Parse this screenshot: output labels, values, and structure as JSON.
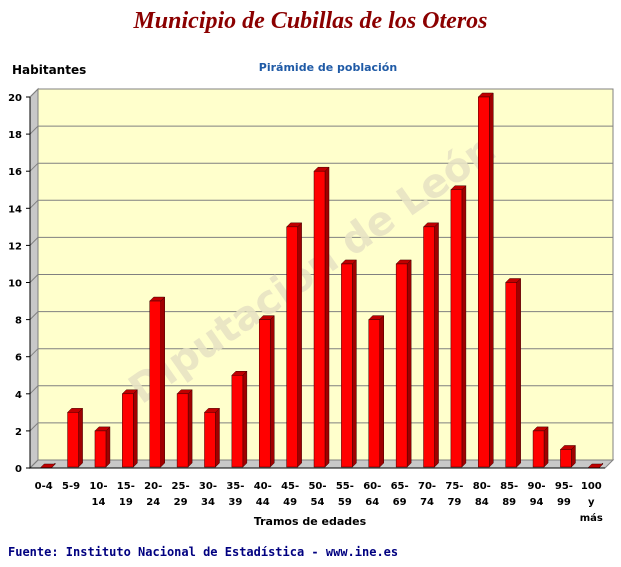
{
  "header": {
    "title": "Municipio de Cubillas de los Oteros",
    "subtitle": "Pirámide de población"
  },
  "footer": {
    "source": "Fuente: Instituto Nacional de Estadística - www.ine.es"
  },
  "watermark": "Diputación de León",
  "colors": {
    "bar": "#ff0000",
    "bar_side": "#a00000",
    "bar_top": "#c00000",
    "plot_bg": "#ffffcc",
    "title": "#8b0000",
    "subtitle": "#1f5aa6"
  },
  "chart_data": {
    "type": "bar",
    "title": "Pirámide de población",
    "xlabel": "Tramos de edades",
    "ylabel": "Habitantes",
    "ylim": [
      0,
      20
    ],
    "yticks": [
      0,
      2,
      4,
      6,
      8,
      10,
      12,
      14,
      16,
      18,
      20
    ],
    "grid": true,
    "categories": [
      "0-4",
      "5-9",
      "10-14",
      "15-19",
      "20-24",
      "25-29",
      "30-34",
      "35-39",
      "40-44",
      "45-49",
      "50-54",
      "55-59",
      "60-64",
      "65-69",
      "70-74",
      "75-79",
      "80-84",
      "85-89",
      "90-94",
      "95-99",
      "100 y más"
    ],
    "category_lines": [
      [
        "0-4"
      ],
      [
        "5-9"
      ],
      [
        "10-",
        "14"
      ],
      [
        "15-",
        "19"
      ],
      [
        "20-",
        "24"
      ],
      [
        "25-",
        "29"
      ],
      [
        "30-",
        "34"
      ],
      [
        "35-",
        "39"
      ],
      [
        "40-",
        "44"
      ],
      [
        "45-",
        "49"
      ],
      [
        "50-",
        "54"
      ],
      [
        "55-",
        "59"
      ],
      [
        "60-",
        "64"
      ],
      [
        "65-",
        "69"
      ],
      [
        "70-",
        "74"
      ],
      [
        "75-",
        "79"
      ],
      [
        "80-",
        "84"
      ],
      [
        "85-",
        "89"
      ],
      [
        "90-",
        "94"
      ],
      [
        "95-",
        "99"
      ],
      [
        "100",
        "y",
        "más"
      ]
    ],
    "values": [
      0,
      3,
      2,
      4,
      9,
      4,
      3,
      5,
      8,
      13,
      16,
      11,
      8,
      11,
      13,
      15,
      20,
      10,
      2,
      1,
      0
    ]
  }
}
